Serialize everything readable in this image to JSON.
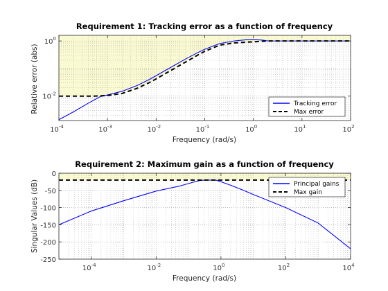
{
  "chart_data": [
    {
      "type": "line",
      "title": "Requirement 1: Tracking error as a function of frequency",
      "xlabel": "Frequency (rad/s)",
      "ylabel": "Relative error (abs)",
      "x_scale": "log",
      "y_scale": "log",
      "xlim": [
        0.0001,
        100
      ],
      "ylim": [
        0.0013,
        1.6
      ],
      "grid": true,
      "legend_placement": "bottom-right",
      "shaded_region": "above max error (yellow)",
      "x_ticks": [
        {
          "base": "10",
          "exp": "-4",
          "value": 0.0001
        },
        {
          "base": "10",
          "exp": "-3",
          "value": 0.001
        },
        {
          "base": "10",
          "exp": "-2",
          "value": 0.01
        },
        {
          "base": "10",
          "exp": "-1",
          "value": 0.1
        },
        {
          "base": "10",
          "exp": "0",
          "value": 1
        },
        {
          "base": "10",
          "exp": "1",
          "value": 10
        },
        {
          "base": "10",
          "exp": "2",
          "value": 100
        }
      ],
      "y_ticks": [
        {
          "base": "10",
          "exp": "-2",
          "value": 0.01
        },
        {
          "base": "10",
          "exp": "0",
          "value": 1
        }
      ],
      "series": [
        {
          "name": "Tracking error",
          "color": "#0000ff",
          "style": "solid",
          "x": [
            0.0001,
            0.0002,
            0.0004,
            0.0007,
            0.001,
            0.002,
            0.004,
            0.007,
            0.01,
            0.02,
            0.04,
            0.07,
            0.1,
            0.2,
            0.4,
            0.7,
            1.0,
            1.5,
            2,
            5,
            10,
            100
          ],
          "y": [
            0.0014,
            0.0027,
            0.0055,
            0.0095,
            0.011,
            0.015,
            0.024,
            0.039,
            0.055,
            0.11,
            0.22,
            0.37,
            0.5,
            0.8,
            1.0,
            1.1,
            1.12,
            1.08,
            1.0,
            1.0,
            1.0,
            1.0
          ]
        },
        {
          "name": "Max error",
          "color": "#000000",
          "style": "dashed",
          "x": [
            0.0001,
            0.0005,
            0.001,
            0.002,
            0.004,
            0.007,
            0.01,
            0.02,
            0.04,
            0.07,
            0.1,
            0.2,
            0.4,
            0.7,
            1.0,
            2,
            10,
            100
          ],
          "y": [
            0.01,
            0.01,
            0.0105,
            0.0125,
            0.019,
            0.03,
            0.042,
            0.085,
            0.17,
            0.3,
            0.42,
            0.7,
            0.85,
            0.9,
            0.93,
            1.0,
            1.0,
            1.0
          ]
        }
      ]
    },
    {
      "type": "line",
      "title": "Requirement 2: Maximum gain as a function of frequency",
      "xlabel": "Frequency (rad/s)",
      "ylabel": "Singular Values (dB)",
      "x_scale": "log",
      "y_scale": "linear",
      "xlim": [
        1e-05,
        10000
      ],
      "ylim": [
        -250,
        0
      ],
      "grid": true,
      "legend_placement": "top-right",
      "shaded_region": "above max gain (yellow)",
      "x_ticks": [
        {
          "base": "10",
          "exp": "-4",
          "value": 0.0001
        },
        {
          "base": "10",
          "exp": "-2",
          "value": 0.01
        },
        {
          "base": "10",
          "exp": "0",
          "value": 1
        },
        {
          "base": "10",
          "exp": "2",
          "value": 100
        },
        {
          "base": "10",
          "exp": "4",
          "value": 10000
        }
      ],
      "y_ticks": [
        "0",
        "-50",
        "-100",
        "-150",
        "-200",
        "-250"
      ],
      "series": [
        {
          "name": "Principal gains",
          "color": "#0000ff",
          "style": "solid",
          "x": [
            1e-05,
            0.0001,
            0.001,
            0.01,
            0.05,
            0.1,
            0.2,
            0.3,
            0.5,
            0.7,
            1,
            2,
            5,
            10,
            100,
            1000,
            10000
          ],
          "y": [
            -150,
            -110,
            -80,
            -52,
            -38,
            -30,
            -22,
            -20,
            -20,
            -20,
            -25,
            -35,
            -50,
            -62,
            -100,
            -145,
            -220
          ]
        },
        {
          "name": "Max gain",
          "color": "#000000",
          "style": "dashed",
          "x": [
            1e-05,
            10000
          ],
          "y": [
            -20,
            -20
          ]
        }
      ]
    }
  ]
}
